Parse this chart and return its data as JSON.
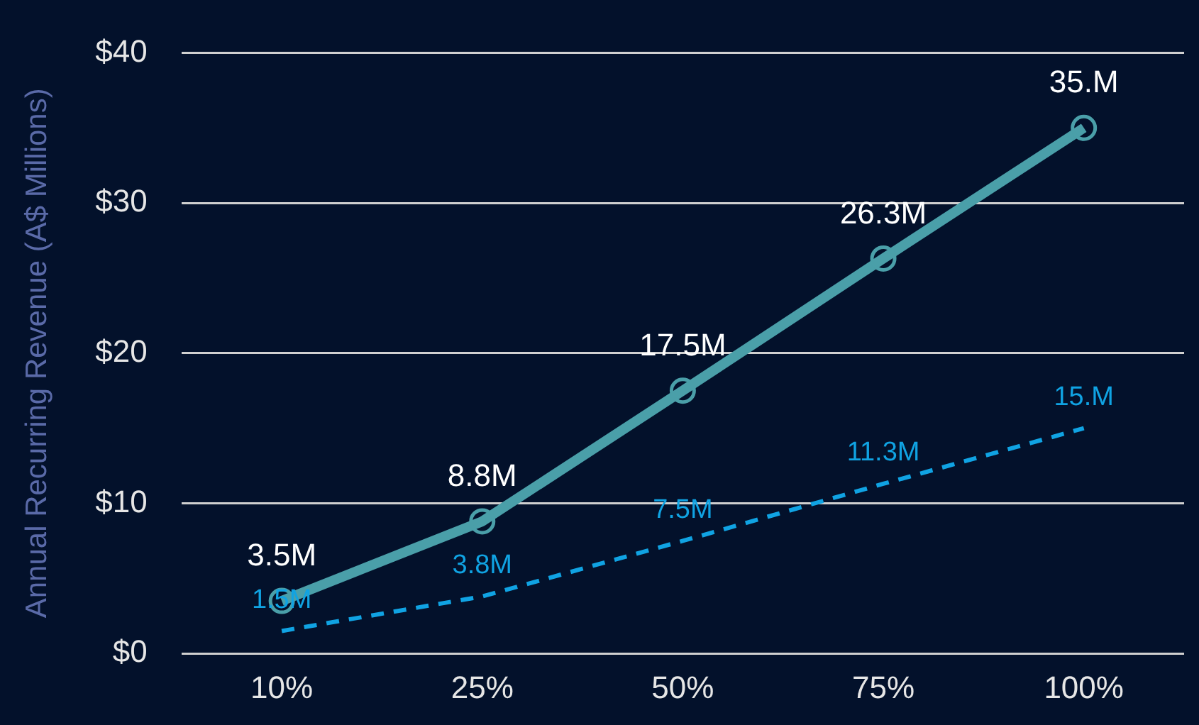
{
  "chart_data": {
    "type": "line",
    "ylabel": "Annual Recurring Revenue (A$ Millions)",
    "categories": [
      "10%",
      "25%",
      "50%",
      "75%",
      "100%"
    ],
    "series": [
      {
        "color": "#4a9fa9",
        "marker": "circle",
        "line_style": "solid",
        "values": [
          3.5,
          8.8,
          17.5,
          26.3,
          35
        ],
        "value_labels": [
          "3.5M",
          "8.8M",
          "17.5M",
          "26.3M",
          "35.M"
        ]
      },
      {
        "color": "#10a3e3",
        "marker": "none",
        "line_style": "dashed",
        "values": [
          1.5,
          3.8,
          7.5,
          11.3,
          15
        ],
        "value_labels": [
          "1.5M",
          "3.8M",
          "7.5M",
          "11.3M",
          "15.M"
        ]
      }
    ],
    "ylim": [
      0,
      40
    ],
    "yticks": [
      {
        "value": 0,
        "label": "$0"
      },
      {
        "value": 10,
        "label": "$10"
      },
      {
        "value": 20,
        "label": "$20"
      },
      {
        "value": 30,
        "label": "$30"
      },
      {
        "value": 40,
        "label": "$40"
      }
    ],
    "grid": "y",
    "legend": false
  }
}
